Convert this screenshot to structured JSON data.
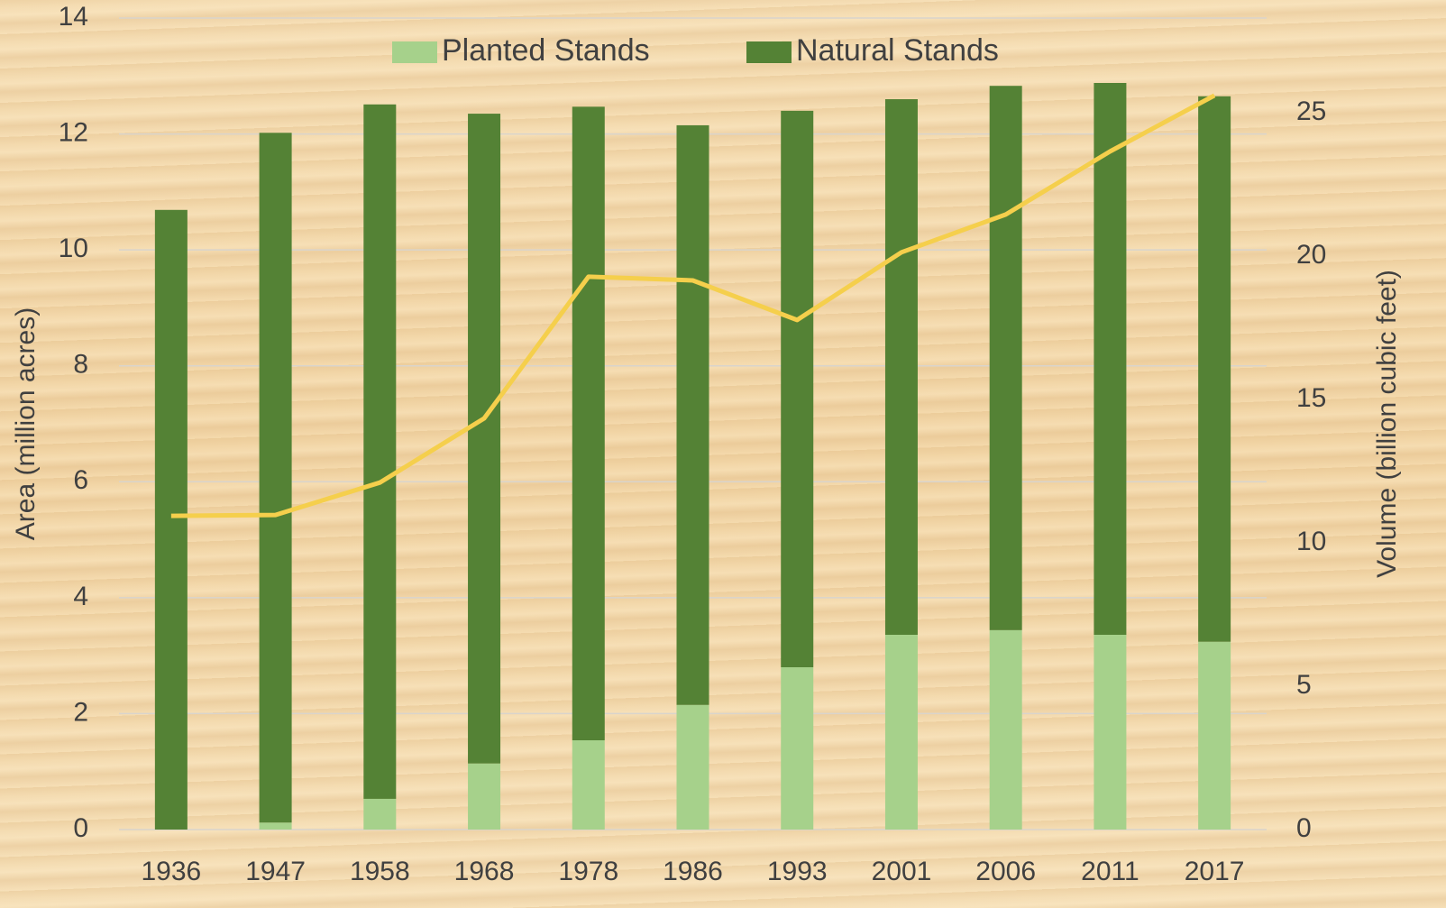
{
  "chart_data": {
    "type": "bar",
    "stacked": true,
    "ylabel": "Area (million acres)",
    "y2label": "Volume (billion cubic feet)",
    "categories": [
      "1936",
      "1947",
      "1958",
      "1968",
      "1978",
      "1986",
      "1993",
      "2001",
      "2006",
      "2011",
      "2017"
    ],
    "series": [
      {
        "name": "Planted Stands",
        "color": "#a6d18b",
        "values": [
          0,
          0.12,
          0.53,
          1.14,
          1.54,
          2.15,
          2.8,
          3.36,
          3.44,
          3.36,
          3.24
        ]
      },
      {
        "name": "Natural Stands",
        "color": "#548235",
        "values": [
          10.69,
          11.9,
          11.98,
          11.21,
          10.93,
          10.0,
          9.6,
          9.24,
          9.39,
          9.52,
          9.41
        ]
      },
      {
        "type": "line",
        "axis": "y2",
        "color": "#f5cf4c",
        "values": [
          10.94,
          10.97,
          12.1,
          14.34,
          19.28,
          19.15,
          17.77,
          20.13,
          21.45,
          23.65,
          25.6
        ]
      }
    ],
    "ylim": [
      0,
      14
    ],
    "yticks": [
      0,
      2,
      4,
      6,
      8,
      10,
      12,
      14
    ],
    "y2lim": [
      0,
      28.3
    ],
    "y2ticks": [
      0,
      5,
      10,
      15,
      20,
      25
    ],
    "grid": true,
    "legend": "top"
  }
}
